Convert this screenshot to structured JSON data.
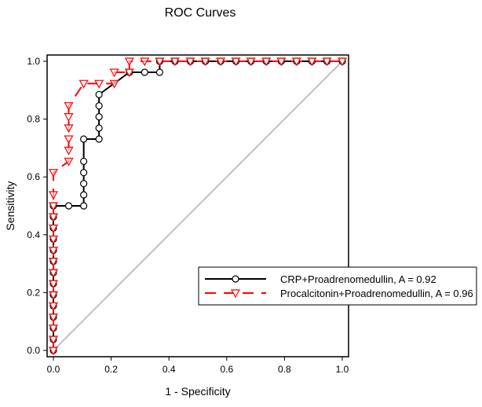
{
  "chart_data": {
    "type": "line",
    "title": "ROC Curves",
    "xlabel": "1 - Specificity",
    "ylabel": "Sensitivity",
    "xlim": [
      0,
      1
    ],
    "ylim": [
      0,
      1
    ],
    "xticks": [
      "0.0",
      "0.2",
      "0.4",
      "0.6",
      "0.8",
      "1.0"
    ],
    "yticks": [
      "0.0",
      "0.2",
      "0.4",
      "0.6",
      "0.8",
      "1.0"
    ],
    "legend_position": "lower-right",
    "reference_line": {
      "x": [
        0,
        1
      ],
      "y": [
        0,
        1
      ],
      "color": "#c0c0c0"
    },
    "series": [
      {
        "name": "CRP+Proadrenomedullin, A = 0.92",
        "color": "#000000",
        "marker": "circle",
        "x": [
          0,
          0,
          0,
          0,
          0,
          0,
          0,
          0,
          0,
          0,
          0,
          0,
          0,
          0,
          0.053,
          0.105,
          0.105,
          0.105,
          0.105,
          0.105,
          0.105,
          0.158,
          0.158,
          0.158,
          0.158,
          0.158,
          0.263,
          0.316,
          0.368,
          0.368,
          0.421,
          0.474,
          0.526,
          0.579,
          0.632,
          0.684,
          0.737,
          0.789,
          0.842,
          0.895,
          0.947,
          1.0
        ],
        "y": [
          0,
          0.038,
          0.077,
          0.115,
          0.154,
          0.192,
          0.231,
          0.269,
          0.308,
          0.346,
          0.385,
          0.423,
          0.462,
          0.5,
          0.5,
          0.5,
          0.538,
          0.577,
          0.615,
          0.654,
          0.731,
          0.731,
          0.769,
          0.808,
          0.846,
          0.885,
          0.962,
          0.962,
          0.962,
          1,
          1,
          1,
          1,
          1,
          1,
          1,
          1,
          1,
          1,
          1,
          1,
          1
        ]
      },
      {
        "name": "Procalcitonin+Proadrenomedullin, A = 0.96",
        "color": "#ff0000",
        "marker": "triangle-down",
        "x": [
          0,
          0,
          0,
          0,
          0,
          0,
          0,
          0,
          0,
          0,
          0,
          0,
          0,
          0,
          0,
          0,
          0.053,
          0.053,
          0.053,
          0.053,
          0.053,
          0.053,
          0.105,
          0.158,
          0.211,
          0.211,
          0.263,
          0.263,
          0.316,
          0.368,
          0.421,
          0.474,
          0.526,
          0.579,
          0.632,
          0.684,
          0.737,
          0.789,
          0.842,
          0.895,
          0.947,
          1.0
        ],
        "y": [
          0,
          0.038,
          0.077,
          0.115,
          0.154,
          0.192,
          0.231,
          0.269,
          0.308,
          0.346,
          0.385,
          0.423,
          0.462,
          0.5,
          0.538,
          0.615,
          0.654,
          0.692,
          0.731,
          0.769,
          0.808,
          0.846,
          0.923,
          0.923,
          0.923,
          0.962,
          0.962,
          1,
          1,
          1,
          1,
          1,
          1,
          1,
          1,
          1,
          1,
          1,
          1,
          1,
          1,
          1
        ]
      }
    ]
  }
}
